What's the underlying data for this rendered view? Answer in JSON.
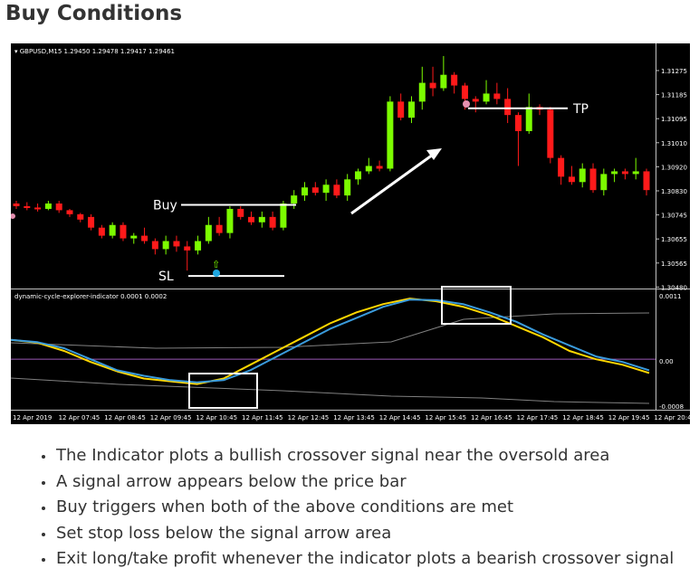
{
  "page": {
    "title": "Buy Conditions"
  },
  "chart": {
    "symbol_label": "GBPUSD,M15  1.29450 1.29478 1.29417 1.29461",
    "indicator_label": "dynamic-cycle-explorer-indicator 0.0001 0.0002",
    "annotations": {
      "buy": "Buy",
      "sl": "SL",
      "tp": "TP"
    },
    "colors": {
      "bull": "#7cfc00",
      "bear": "#ff1a1a",
      "fast_line": "#ffd700",
      "slow_line": "#3a9bdc",
      "zero_line": "#9b59b6",
      "box": "#ffffff"
    },
    "icons": {
      "signal_arrow": "up-arrow-icon",
      "signal_dot": "buy-signal-dot-icon",
      "sell_dot": "sell-signal-dot-icon"
    },
    "price_ticks": [
      "1.31275",
      "1.31185",
      "1.31095",
      "1.31010",
      "1.30920",
      "1.30830",
      "1.30745",
      "1.30655",
      "1.30565",
      "1.30480"
    ],
    "indicator_ticks": [
      "0.0011",
      "0.00",
      "-0.0008"
    ],
    "time_ticks": [
      "12 Apr 2019",
      "12 Apr 07:45",
      "12 Apr 08:45",
      "12 Apr 09:45",
      "12 Apr 10:45",
      "12 Apr 11:45",
      "12 Apr 12:45",
      "12 Apr 13:45",
      "12 Apr 14:45",
      "12 Apr 15:45",
      "12 Apr 16:45",
      "12 Apr 17:45",
      "12 Apr 18:45",
      "12 Apr 19:45",
      "12 Apr 20:45"
    ]
  },
  "chart_data": {
    "type": "candlestick",
    "series": [
      {
        "name": "GBPUSD,M15",
        "candles": [
          [
            1.3075,
            1.3076,
            1.3073,
            1.3074
          ],
          [
            1.3074,
            1.30755,
            1.30725,
            1.30735
          ],
          [
            1.30735,
            1.3075,
            1.3072,
            1.3073
          ],
          [
            1.3073,
            1.3076,
            1.30725,
            1.3075
          ],
          [
            1.3075,
            1.3076,
            1.30715,
            1.30725
          ],
          [
            1.30725,
            1.3073,
            1.307,
            1.3071
          ],
          [
            1.3071,
            1.30715,
            1.3068,
            1.3069
          ],
          [
            1.307,
            1.3071,
            1.3065,
            1.3066
          ],
          [
            1.3066,
            1.3067,
            1.3062,
            1.3063
          ],
          [
            1.3063,
            1.3068,
            1.3062,
            1.3067
          ],
          [
            1.3067,
            1.3068,
            1.3061,
            1.3062
          ],
          [
            1.3062,
            1.3064,
            1.306,
            1.3063
          ],
          [
            1.3063,
            1.3066,
            1.306,
            1.3061
          ],
          [
            1.3061,
            1.3062,
            1.3056,
            1.3058
          ],
          [
            1.3058,
            1.3063,
            1.3056,
            1.3061
          ],
          [
            1.3061,
            1.3063,
            1.3057,
            1.3059
          ],
          [
            1.3059,
            1.3061,
            1.305,
            1.30575
          ],
          [
            1.30575,
            1.3063,
            1.3056,
            1.3061
          ],
          [
            1.3061,
            1.307,
            1.306,
            1.3067
          ],
          [
            1.3067,
            1.307,
            1.3063,
            1.3064
          ],
          [
            1.3064,
            1.3074,
            1.3062,
            1.3073
          ],
          [
            1.3073,
            1.3074,
            1.3069,
            1.307
          ],
          [
            1.307,
            1.3072,
            1.3067,
            1.3068
          ],
          [
            1.3068,
            1.3072,
            1.3066,
            1.307
          ],
          [
            1.307,
            1.3072,
            1.3065,
            1.3066
          ],
          [
            1.3066,
            1.3076,
            1.3065,
            1.3075
          ],
          [
            1.3075,
            1.308,
            1.3073,
            1.3078
          ],
          [
            1.3078,
            1.3083,
            1.3076,
            1.3081
          ],
          [
            1.3081,
            1.3083,
            1.3078,
            1.3079
          ],
          [
            1.3079,
            1.3084,
            1.3076,
            1.3082
          ],
          [
            1.3082,
            1.3084,
            1.3077,
            1.3078
          ],
          [
            1.3078,
            1.3086,
            1.3076,
            1.3084
          ],
          [
            1.3084,
            1.3088,
            1.3082,
            1.3087
          ],
          [
            1.3087,
            1.3092,
            1.3086,
            1.3089
          ],
          [
            1.3089,
            1.3091,
            1.3087,
            1.3088
          ],
          [
            1.3088,
            1.3115,
            1.3087,
            1.3113
          ],
          [
            1.3113,
            1.3116,
            1.3106,
            1.3107
          ],
          [
            1.3107,
            1.3115,
            1.3105,
            1.3113
          ],
          [
            1.3113,
            1.3126,
            1.311,
            1.312
          ],
          [
            1.312,
            1.3126,
            1.3115,
            1.3118
          ],
          [
            1.3118,
            1.313,
            1.3117,
            1.3123
          ],
          [
            1.3123,
            1.3124,
            1.3116,
            1.3119
          ],
          [
            1.3119,
            1.312,
            1.311,
            1.3114
          ],
          [
            1.3114,
            1.3115,
            1.3109,
            1.3113
          ],
          [
            1.3113,
            1.3121,
            1.3112,
            1.3116
          ],
          [
            1.3116,
            1.312,
            1.3112,
            1.3114
          ],
          [
            1.3114,
            1.3118,
            1.3105,
            1.3108
          ],
          [
            1.3108,
            1.3109,
            1.3089,
            1.3102
          ],
          [
            1.3102,
            1.3116,
            1.3101,
            1.3111
          ],
          [
            1.3111,
            1.3112,
            1.3108,
            1.311
          ],
          [
            1.311,
            1.3111,
            1.309,
            1.3092
          ],
          [
            1.3092,
            1.3093,
            1.3082,
            1.3085
          ],
          [
            1.3085,
            1.3089,
            1.3082,
            1.3083
          ],
          [
            1.3083,
            1.309,
            1.3081,
            1.3088
          ],
          [
            1.3088,
            1.309,
            1.3079,
            1.308
          ],
          [
            1.308,
            1.3088,
            1.3078,
            1.3086
          ],
          [
            1.3086,
            1.3088,
            1.3083,
            1.3087
          ],
          [
            1.3087,
            1.3088,
            1.3084,
            1.3086
          ],
          [
            1.3086,
            1.3092,
            1.3084,
            1.3087
          ],
          [
            1.3087,
            1.3088,
            1.3078,
            1.308
          ]
        ]
      }
    ],
    "indicator": {
      "fast": [
        0.00035,
        0.0003,
        0.00015,
        -5e-05,
        -0.00022,
        -0.00035,
        -0.0004,
        -0.00045,
        -0.00035,
        -0.0001,
        0.00015,
        0.0004,
        0.00065,
        0.00085,
        0.001,
        0.0011,
        0.00105,
        0.00095,
        0.0008,
        0.0006,
        0.0004,
        0.00015,
        0.0,
        -0.0001,
        -0.00025
      ],
      "slow": [
        0.00035,
        0.00031,
        0.0002,
        0.0,
        -0.0002,
        -0.0003,
        -0.00038,
        -0.00042,
        -0.00038,
        -0.0002,
        5e-05,
        0.0003,
        0.00055,
        0.00075,
        0.00095,
        0.00108,
        0.00107,
        0.001,
        0.00085,
        0.00068,
        0.00045,
        0.00025,
        5e-05,
        -5e-05,
        -0.0002
      ]
    },
    "levels": {
      "buy": 1.30745,
      "stop_loss": 1.3048,
      "take_profit": 1.31105
    },
    "ylim": [
      1.3046,
      1.3132
    ],
    "indicator_ylim": [
      -0.00085,
      0.0012
    ]
  },
  "bullets": [
    "The Indicator plots a bullish crossover signal near the oversold area",
    "A signal arrow appears below the price bar",
    "Buy triggers when both of the above conditions are met",
    "Set stop loss below the signal arrow area",
    "Exit long/take profit whenever the indicator plots a bearish crossover signal"
  ]
}
